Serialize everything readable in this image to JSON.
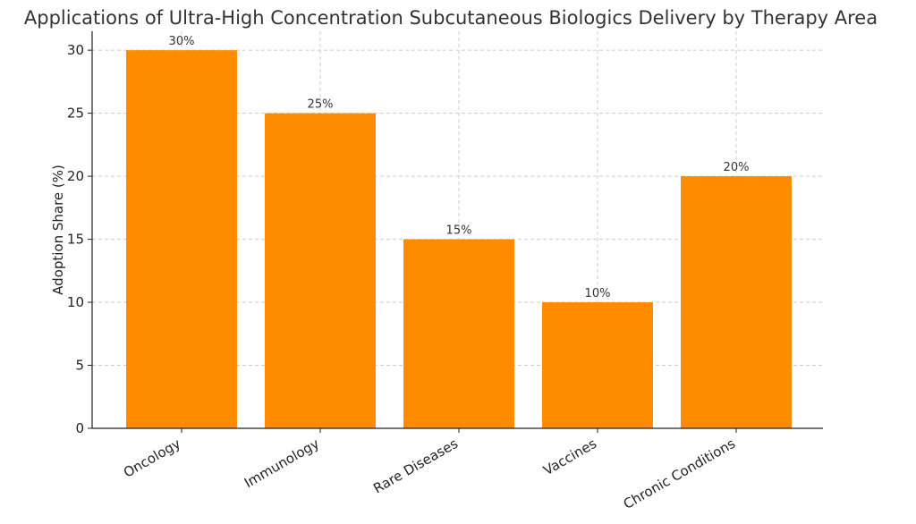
{
  "chart_data": {
    "type": "bar",
    "title": "Applications of Ultra-High Concentration Subcutaneous Biologics Delivery by Therapy Area",
    "xlabel": "",
    "ylabel": "Adoption Share (%)",
    "categories": [
      "Oncology",
      "Immunology",
      "Rare Diseases",
      "Vaccines",
      "Chronic Conditions"
    ],
    "values": [
      30,
      25,
      15,
      10,
      20
    ],
    "data_labels": [
      "30%",
      "25%",
      "15%",
      "10%",
      "20%"
    ],
    "ylim": [
      0,
      31.5
    ],
    "yticks": [
      0,
      5,
      10,
      15,
      20,
      25,
      30
    ],
    "grid": true,
    "bar_color": "#ff8c00"
  }
}
